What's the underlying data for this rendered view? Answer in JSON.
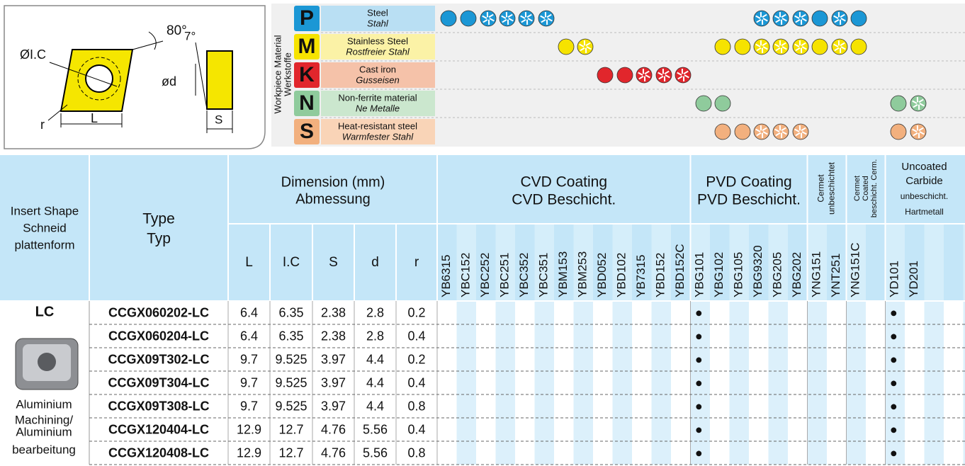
{
  "diagram": {
    "angle": "80°",
    "clearance": "7°",
    "ic": "ØI.C",
    "d": "ød",
    "r": "r",
    "L": "L",
    "S": "S"
  },
  "workpiece": {
    "title": [
      "Workpiece Material",
      "Werkstoffe"
    ],
    "materials": [
      {
        "letter": "P",
        "en": "Steel",
        "de": "Stahl"
      },
      {
        "letter": "M",
        "en": "Stainless Steel",
        "de": "Rostfreier Stahl"
      },
      {
        "letter": "K",
        "en": "Cast iron",
        "de": "Gusseisen"
      },
      {
        "letter": "N",
        "en": "Non-ferrite material",
        "de": "Ne Metalle"
      },
      {
        "letter": "S",
        "en": "Heat-resistant steel",
        "de": "Warmfester Stahl"
      }
    ]
  },
  "table": {
    "header": {
      "shape": [
        "Insert Shape",
        "Schneid",
        "plattenform"
      ],
      "type": [
        "Type",
        "Typ"
      ],
      "dimension": [
        "Dimension (mm)",
        "Abmessung"
      ],
      "dimensions": [
        "L",
        "I.C",
        "S",
        "d",
        "r"
      ]
    },
    "groups": [
      {
        "title": [
          "CVD Coating",
          "CVD Beschicht."
        ],
        "grades": [
          "YB6315",
          "YBC152",
          "YBC252",
          "YBC251",
          "YBC352",
          "YBC351",
          "YBM153",
          "YBM253",
          "YBD052",
          "YBD102",
          "YB7315",
          "YBD152",
          "YBD152C"
        ]
      },
      {
        "title": [
          "PVD Coating",
          "PVD Beschicht."
        ],
        "grades": [
          "YBG101",
          "YBG102",
          "YBG105",
          "YBG9320",
          "YBG205",
          "YBG202"
        ]
      },
      {
        "title": [
          "Cermet",
          "unbeschichtet"
        ],
        "grades": [
          "YNG151",
          "YNT251"
        ]
      },
      {
        "title": [
          "Cermet",
          "Coated",
          "beschicht. Cerm."
        ],
        "grades": [
          "YNG151C"
        ]
      },
      {
        "title": [
          "Uncoated",
          "Carbide",
          "unbeschicht.",
          "Hartmetall"
        ],
        "grades": [
          "YD101",
          "YD201"
        ]
      }
    ],
    "shape": {
      "code": "LC",
      "application": [
        "Aluminium",
        "Machining/",
        "Aluminium",
        "bearbeitung"
      ]
    },
    "rows": [
      {
        "type": "CCGX060202-LC",
        "dims": [
          6.4,
          6.35,
          2.38,
          2.8,
          0.2
        ],
        "marks": {
          "YBG101": "●",
          "YD101": "●"
        }
      },
      {
        "type": "CCGX060204-LC",
        "dims": [
          6.4,
          6.35,
          2.38,
          2.8,
          0.4
        ],
        "marks": {
          "YBG101": "●",
          "YD101": "●"
        }
      },
      {
        "type": "CCGX09T302-LC",
        "dims": [
          9.7,
          9.525,
          3.97,
          4.4,
          0.2
        ],
        "marks": {
          "YBG101": "●",
          "YD101": "●"
        }
      },
      {
        "type": "CCGX09T304-LC",
        "dims": [
          9.7,
          9.525,
          3.97,
          4.4,
          0.4
        ],
        "marks": {
          "YBG101": "●",
          "YD101": "●"
        }
      },
      {
        "type": "CCGX09T308-LC",
        "dims": [
          9.7,
          9.525,
          3.97,
          4.4,
          0.8
        ],
        "marks": {
          "YBG101": "●",
          "YD101": "●"
        }
      },
      {
        "type": "CCGX120404-LC",
        "dims": [
          12.9,
          12.7,
          4.76,
          5.56,
          0.4
        ],
        "marks": {
          "YBG101": "●",
          "YD101": "●"
        }
      },
      {
        "type": "CCGX120408-LC",
        "dims": [
          12.9,
          12.7,
          4.76,
          5.56,
          0.8
        ],
        "marks": {
          "YBG101": "●",
          "YD101": "●"
        }
      }
    ]
  }
}
